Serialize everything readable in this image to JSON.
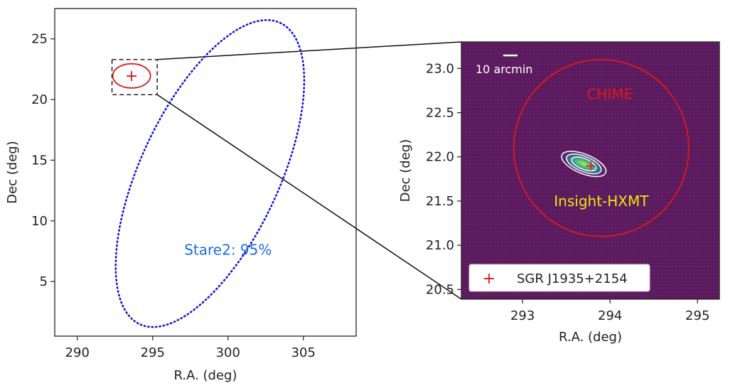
{
  "chart_data": [
    {
      "type": "scatter",
      "xlabel": "R.A. (deg)",
      "ylabel": "Dec (deg)",
      "xlim": [
        288.5,
        308.5
      ],
      "ylim": [
        0.5,
        27.5
      ],
      "xticks": [
        290,
        295,
        300,
        305
      ],
      "yticks": [
        5,
        10,
        15,
        20,
        25
      ],
      "grid": false,
      "annotations": [
        {
          "text": "Stare2: 95%",
          "color": "#1a6fe0",
          "x": 300,
          "y": 7.2
        }
      ],
      "regions": [
        {
          "kind": "dotted-ellipse",
          "color": "#1111dd",
          "center": [
            298.8,
            13.9
          ],
          "semi_axes": [
            13.7,
            4.6
          ],
          "angle_deg": -65
        },
        {
          "kind": "dashed-box",
          "color": "#222222",
          "x": [
            292.3,
            295.3
          ],
          "y": [
            20.4,
            23.3
          ]
        },
        {
          "kind": "circle",
          "color": "#e01818",
          "center": [
            293.6,
            21.95
          ],
          "radius": 1.0
        }
      ],
      "markers": [
        {
          "symbol": "+",
          "color": "#e01818",
          "x": 293.6,
          "y": 21.95
        }
      ]
    },
    {
      "type": "heatmap",
      "xlabel": "R.A. (deg)",
      "ylabel": "Dec (deg)",
      "xlim": [
        292.3,
        295.25
      ],
      "ylim": [
        20.39,
        23.3
      ],
      "xticks": [
        293,
        294,
        295
      ],
      "yticks": [
        20.5,
        21.0,
        21.5,
        22.0,
        22.5,
        23.0
      ],
      "ytick_labels": [
        "20.5",
        "21.0",
        "21.5",
        "22.0",
        "22.5",
        "23.0"
      ],
      "background_color": "#5c1a5e",
      "scale_bar": {
        "label": "10 arcmin",
        "length_arcmin": 10
      },
      "circles": [
        {
          "label": "CHIME",
          "color": "#e01818",
          "center": [
            293.9,
            22.1
          ],
          "radius": 1.0
        }
      ],
      "contours": [
        {
          "center": [
            293.7,
            21.92
          ],
          "levels": [
            1.0,
            0.78,
            0.55
          ]
        }
      ],
      "source_label": {
        "text": "Insight-HXMT",
        "color": "#f5e20a",
        "x": 293.9,
        "y": 21.5
      },
      "markers": [
        {
          "symbol": "+",
          "color": "#e01818",
          "x": 293.78,
          "y": 21.9
        }
      ],
      "legend": {
        "position": "lower-left",
        "entries": [
          {
            "label": "SGR J1935+2154",
            "symbol": "+",
            "color": "#e01818"
          }
        ]
      }
    }
  ]
}
